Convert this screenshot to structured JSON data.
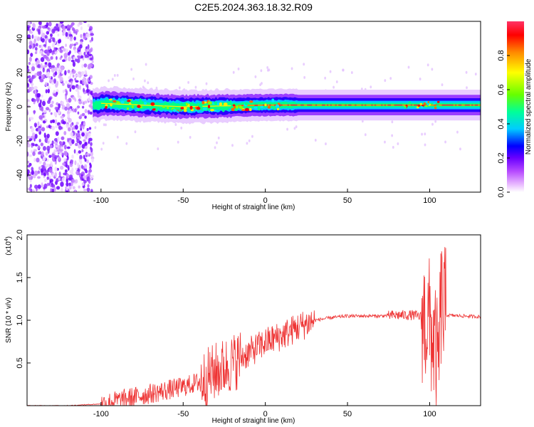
{
  "page": {
    "title": "C2E5.2024.363.18.32.R09"
  },
  "chart_data": [
    {
      "type": "heatmap",
      "xlabel": "Height of straight line (km)",
      "ylabel": "Frequency (Hz)",
      "xlim": [
        -145,
        131
      ],
      "ylim": [
        -50,
        50
      ],
      "xticks": [
        -100,
        -50,
        0,
        50,
        100
      ],
      "yticks": [
        -40,
        -20,
        0,
        20,
        40
      ],
      "colorbar": {
        "label": "Normalized spectral amplitude",
        "range": [
          0,
          1
        ],
        "ticks": [
          "0.0",
          "0.2",
          "0.4",
          "0.6",
          "0.8"
        ],
        "colors": [
          "#ffffff",
          "#cc66ff",
          "#7700ff",
          "#0000ff",
          "#00ccff",
          "#00ff66",
          "#66ff00",
          "#ffff00",
          "#ff8800",
          "#ff0000",
          "#ff3366"
        ]
      },
      "ridge": {
        "description_values": [
          {
            "x": -100,
            "y": 2
          },
          {
            "x": -50,
            "y": 0
          },
          {
            "x": 0,
            "y": 1
          },
          {
            "x": 50,
            "y": 1
          },
          {
            "x": 100,
            "y": 1
          },
          {
            "x": 131,
            "y": 1
          }
        ]
      }
    },
    {
      "type": "line",
      "xlabel": "Height of straight line (km)",
      "ylabel": "SNR (10 * v/v)",
      "multiplier_label": "(x10",
      "multiplier_exp": "4",
      "xlim": [
        -145,
        131
      ],
      "ylim": [
        0,
        2.0
      ],
      "xticks": [
        -100,
        -50,
        0,
        50,
        100
      ],
      "yticks": [
        "0.5",
        "1.0",
        "1.5",
        "2.0"
      ],
      "color": "#ee3333",
      "series": [
        {
          "x": [
            -145,
            -120,
            -100,
            -90,
            -80,
            -70,
            -60,
            -50,
            -40,
            -30,
            -25,
            -20,
            -10,
            0,
            10,
            20,
            30,
            40,
            50,
            60,
            70,
            80,
            90,
            95,
            100,
            103,
            105,
            107,
            110,
            120,
            131
          ],
          "values": [
            0.0,
            0.0,
            0.02,
            0.06,
            0.1,
            0.14,
            0.18,
            0.22,
            0.28,
            0.4,
            0.45,
            0.5,
            0.62,
            0.74,
            0.82,
            0.92,
            1.0,
            1.03,
            1.05,
            1.05,
            1.05,
            1.06,
            1.06,
            1.04,
            0.95,
            0.7,
            0.4,
            1.2,
            1.06,
            1.05,
            1.04
          ]
        }
      ]
    }
  ]
}
